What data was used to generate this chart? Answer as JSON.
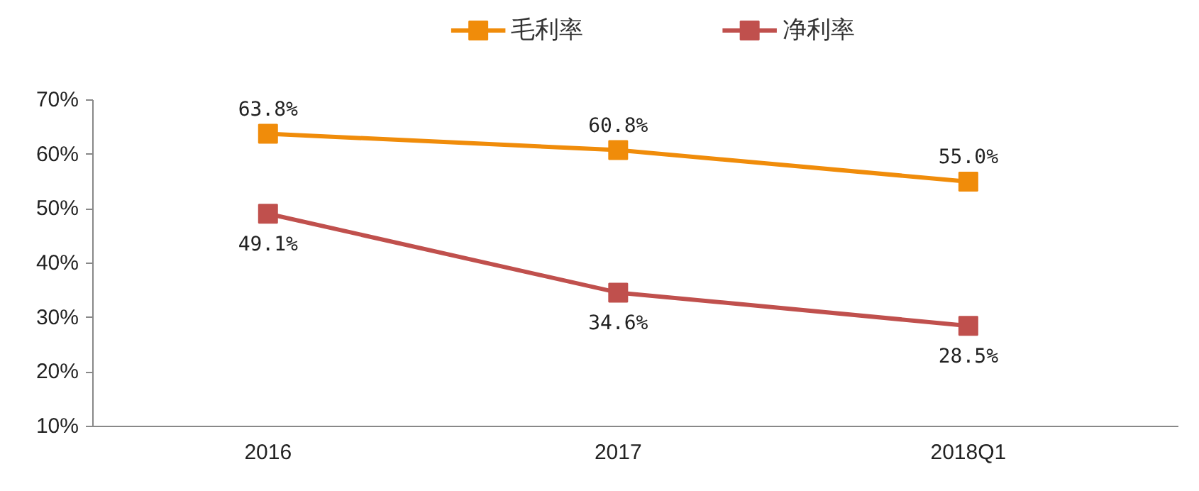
{
  "chart_data": {
    "type": "line",
    "categories": [
      "2016",
      "2017",
      "2018Q1"
    ],
    "series": [
      {
        "name": "毛利率",
        "color": "#f08c0a",
        "values": [
          63.8,
          60.8,
          55.0
        ],
        "value_labels": [
          "63.8%",
          "60.8%",
          "55.0%"
        ]
      },
      {
        "name": "净利率",
        "color": "#c0504d",
        "values": [
          49.1,
          34.6,
          28.5
        ],
        "value_labels": [
          "49.1%",
          "34.6%",
          "28.5%"
        ]
      }
    ],
    "ylim": [
      10,
      70
    ],
    "yticks": [
      {
        "value": 10,
        "label": "10%"
      },
      {
        "value": 20,
        "label": "20%"
      },
      {
        "value": 30,
        "label": "30%"
      },
      {
        "value": 40,
        "label": "40%"
      },
      {
        "value": 50,
        "label": "50%"
      },
      {
        "value": 60,
        "label": "60%"
      },
      {
        "value": 70,
        "label": "70%"
      }
    ],
    "grid": false,
    "legend": "top",
    "marker": "square",
    "line_style": "solid"
  }
}
